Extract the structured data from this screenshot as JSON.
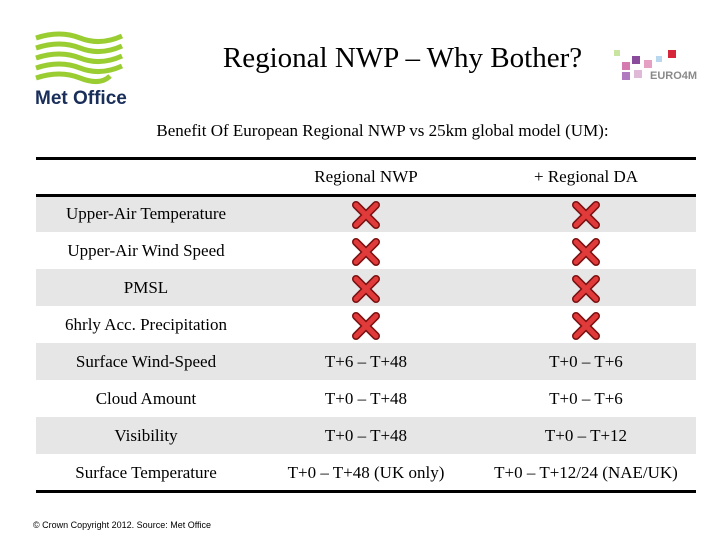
{
  "header": {
    "title": "Regional NWP – Why Bother?",
    "logo": "Met Office",
    "partner_logo": "EURO4M"
  },
  "subtitle": "Benefit Of European Regional NWP vs 25km global model (UM):",
  "table": {
    "columns": [
      "Regional NWP",
      "+ Regional DA"
    ],
    "rows": [
      [
        "Upper-Air Temperature",
        null,
        null
      ],
      [
        "Upper-Air Wind Speed",
        null,
        null
      ],
      [
        "PMSL",
        null,
        null
      ],
      [
        "6hrly Acc. Precipitation",
        null,
        null
      ],
      [
        "Surface Wind-Speed",
        "T+6 – T+48",
        "T+0 – T+6"
      ],
      [
        "Cloud Amount",
        "T+0 – T+48",
        "T+0 – T+6"
      ],
      [
        "Visibility",
        "T+0 – T+48",
        "T+0 – T+12"
      ],
      [
        "Surface Temperature",
        "T+0 – T+48 (UK only)",
        "T+0 – T+12/24 (NAE/UK)"
      ]
    ]
  },
  "footer": "© Crown Copyright 2012. Source: Met Office"
}
